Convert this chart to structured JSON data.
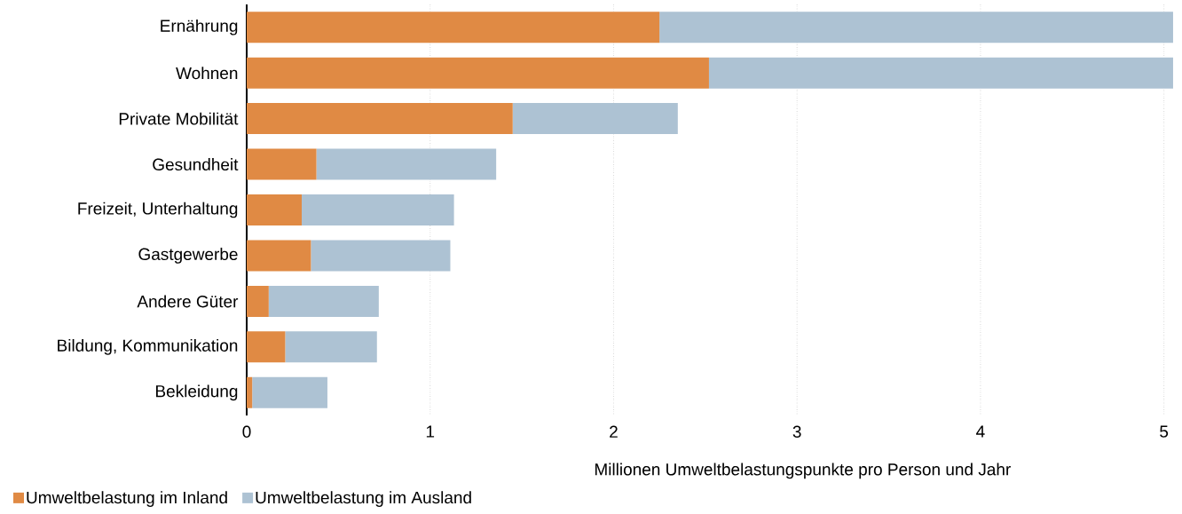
{
  "chart_data": {
    "type": "bar",
    "orientation": "horizontal",
    "stacked": true,
    "categories": [
      "Ernährung",
      "Wohnen",
      "Private Mobilität",
      "Gesundheit",
      "Freizeit, Unterhaltung",
      "Gastgewerbe",
      "Andere Güter",
      "Bildung, Kommunikation",
      "Bekleidung"
    ],
    "series": [
      {
        "name": "Umweltbelastung im Inland",
        "color": "#e08a44",
        "values": [
          2.25,
          2.52,
          1.45,
          0.38,
          0.3,
          0.35,
          0.12,
          0.21,
          0.03
        ]
      },
      {
        "name": "Umweltbelastung im Ausland",
        "color": "#adc2d3",
        "values": [
          2.8,
          2.53,
          0.9,
          0.98,
          0.83,
          0.76,
          0.6,
          0.5,
          0.41
        ]
      }
    ],
    "xlabel": "Millionen Umweltbelastungspunkte pro Person und Jahr",
    "xlim": [
      0,
      5.05
    ],
    "xticks": [
      0,
      1,
      2,
      3,
      4,
      5
    ],
    "grid": "x",
    "legend": "bottom left"
  }
}
